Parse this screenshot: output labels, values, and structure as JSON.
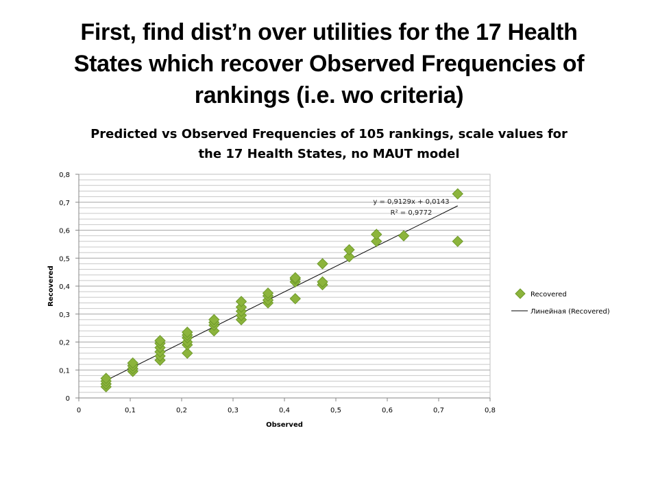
{
  "slide": {
    "title_line1": "First, find dist’n over utilities for the 17 Health",
    "title_line2": "States which recover Observed Frequencies of",
    "title_line3": "rankings (i.e. wo criteria)"
  },
  "chart_data": {
    "type": "scatter",
    "title_line1": "Predicted vs Observed Frequencies of 105 rankings, scale values for",
    "title_line2": "the 17 Health States, no MAUT model",
    "xlabel": "Observed",
    "ylabel": "Recovered",
    "xlim": [
      0,
      0.8
    ],
    "ylim": [
      0,
      0.8
    ],
    "x_ticks": [
      "0",
      "0,1",
      "0,2",
      "0,3",
      "0,4",
      "0,5",
      "0,6",
      "0,7",
      "0,8"
    ],
    "y_ticks": [
      "0",
      "0,1",
      "0,2",
      "0,3",
      "0,4",
      "0,5",
      "0,6",
      "0,7",
      "0,8"
    ],
    "grid": "horizontal",
    "legend_position": "right",
    "series": [
      {
        "name": "Recovered",
        "marker": "diamond",
        "color": "#8cb43c",
        "points": [
          [
            0.053,
            0.04
          ],
          [
            0.053,
            0.05
          ],
          [
            0.053,
            0.06
          ],
          [
            0.053,
            0.07
          ],
          [
            0.105,
            0.095
          ],
          [
            0.105,
            0.105
          ],
          [
            0.105,
            0.115
          ],
          [
            0.105,
            0.125
          ],
          [
            0.158,
            0.135
          ],
          [
            0.158,
            0.15
          ],
          [
            0.158,
            0.165
          ],
          [
            0.158,
            0.18
          ],
          [
            0.158,
            0.195
          ],
          [
            0.158,
            0.205
          ],
          [
            0.211,
            0.16
          ],
          [
            0.211,
            0.19
          ],
          [
            0.211,
            0.2
          ],
          [
            0.211,
            0.215
          ],
          [
            0.211,
            0.225
          ],
          [
            0.211,
            0.235
          ],
          [
            0.263,
            0.24
          ],
          [
            0.263,
            0.26
          ],
          [
            0.263,
            0.27
          ],
          [
            0.263,
            0.28
          ],
          [
            0.316,
            0.28
          ],
          [
            0.316,
            0.295
          ],
          [
            0.316,
            0.31
          ],
          [
            0.316,
            0.325
          ],
          [
            0.316,
            0.345
          ],
          [
            0.368,
            0.34
          ],
          [
            0.368,
            0.35
          ],
          [
            0.368,
            0.365
          ],
          [
            0.368,
            0.375
          ],
          [
            0.421,
            0.355
          ],
          [
            0.421,
            0.415
          ],
          [
            0.421,
            0.425
          ],
          [
            0.421,
            0.43
          ],
          [
            0.474,
            0.405
          ],
          [
            0.474,
            0.415
          ],
          [
            0.474,
            0.48
          ],
          [
            0.526,
            0.505
          ],
          [
            0.526,
            0.53
          ],
          [
            0.579,
            0.56
          ],
          [
            0.579,
            0.585
          ],
          [
            0.632,
            0.58
          ],
          [
            0.737,
            0.56
          ],
          [
            0.737,
            0.73
          ]
        ]
      },
      {
        "name": "Линейная (Recovered)",
        "kind": "trendline",
        "color": "#000000",
        "slope": 0.9129,
        "intercept": 0.0143,
        "x_range": [
          0.053,
          0.737
        ]
      }
    ],
    "trendline_equation": "y = 0,9129x + 0,0143",
    "trendline_r2": "R² = 0,9772"
  }
}
